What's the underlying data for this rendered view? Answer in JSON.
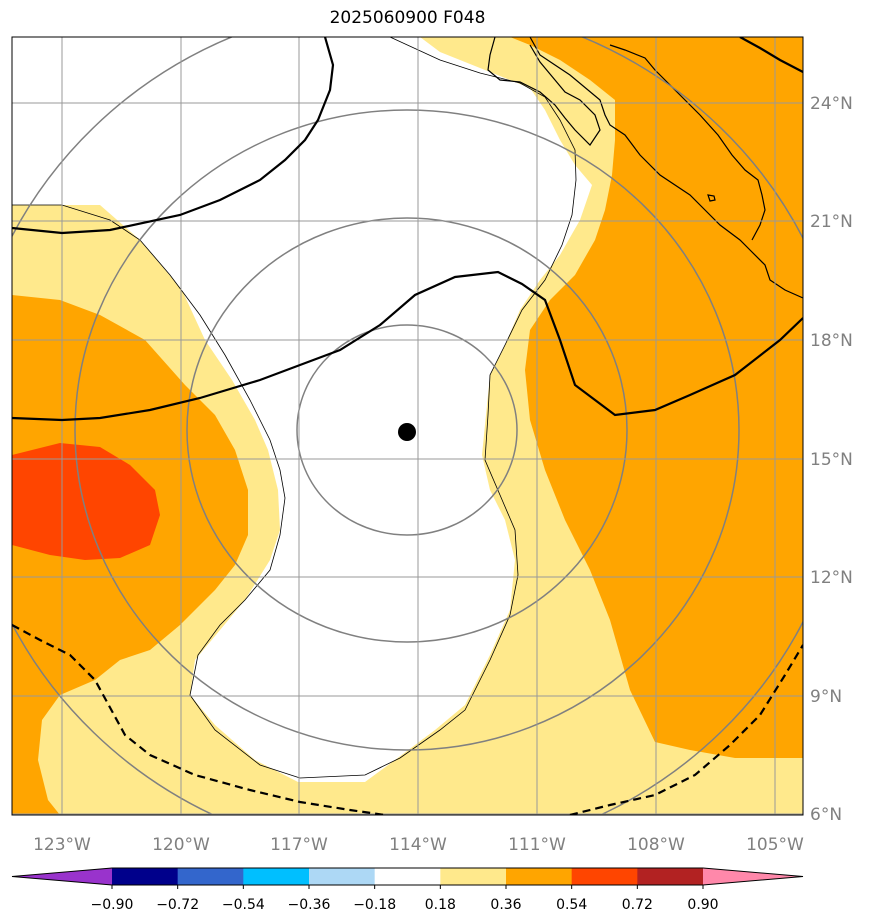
{
  "title": "2025060900 F048",
  "lat_labels": [
    "24°N",
    "21°N",
    "18°N",
    "15°N",
    "12°N",
    "9°N",
    "6°N"
  ],
  "lon_labels": [
    "123°W",
    "120°W",
    "117°W",
    "114°W",
    "111°W",
    "108°W",
    "105°W"
  ],
  "colorbar": {
    "ticks": [
      "−0.90",
      "−0.72",
      "−0.54",
      "−0.36",
      "−0.18",
      "0.18",
      "0.36",
      "0.54",
      "0.72",
      "0.90"
    ],
    "colors": [
      "#9933cc",
      "#00008b",
      "#3366cc",
      "#00bfff",
      "#add8f5",
      "#ffffff",
      "#ffe98c",
      "#ffa500",
      "#ff4500",
      "#b22222",
      "#ff88aa"
    ]
  },
  "fill_colors": {
    "band_036": "#ffe98c",
    "band_054": "#ffa500",
    "band_072": "#ff4500"
  },
  "storm_center": {
    "lon": -114.4,
    "lat": 15.7
  }
}
